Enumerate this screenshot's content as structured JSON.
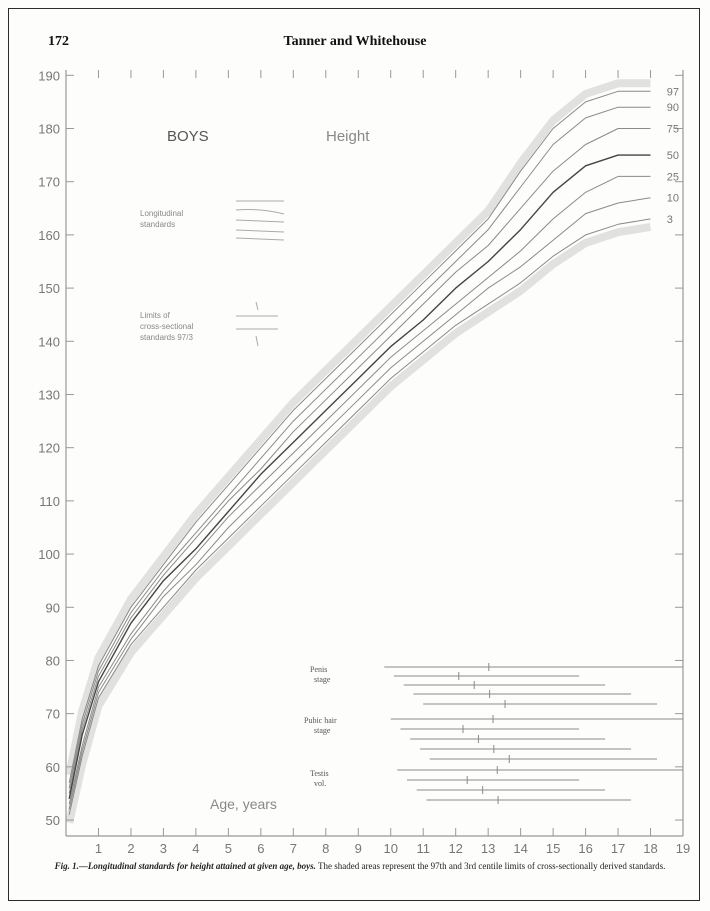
{
  "header": {
    "page_number": "172",
    "running_title": "Tanner and Whitehouse"
  },
  "figure": {
    "title": "BOYS",
    "subtitle": "Height",
    "age_axis_label": "Age, years",
    "legend_longitudinal": [
      "Longitudinal",
      "standards"
    ],
    "legend_cross": [
      "Limits of",
      "cross-sectional",
      "standards 97/3"
    ],
    "stage_groups": [
      {
        "label": [
          "Penis",
          "stage"
        ]
      },
      {
        "label": [
          "Pubic hair",
          "stage"
        ]
      },
      {
        "label": [
          "Testis",
          "vol."
        ]
      }
    ],
    "caption_lead": "Fig. 1.—Longitudinal standards for height attained at given age, boys.",
    "caption_body": "The shaded areas represent the 97th and 3rd centile limits of cross-sectionally derived standards."
  },
  "chart_data": {
    "type": "line",
    "x_ticks": [
      1,
      2,
      3,
      4,
      5,
      6,
      7,
      8,
      9,
      10,
      11,
      12,
      13,
      14,
      15,
      16,
      17,
      18,
      19
    ],
    "y_ticks": [
      50,
      60,
      70,
      80,
      90,
      100,
      110,
      120,
      130,
      140,
      150,
      160,
      170,
      180,
      190
    ],
    "xlim": [
      0,
      19
    ],
    "ylim": [
      47,
      191
    ],
    "x": [
      0.1,
      0.5,
      1,
      2,
      3,
      4,
      5,
      6,
      7,
      8,
      9,
      10,
      11,
      12,
      13,
      14,
      15,
      16,
      17,
      18
    ],
    "series": [
      {
        "name": "97",
        "values": [
          57,
          69,
          79,
          90,
          98,
          106,
          113,
          120,
          127,
          133,
          139,
          145,
          151,
          157,
          163,
          172,
          180,
          185,
          187,
          187
        ]
      },
      {
        "name": "90",
        "values": [
          56,
          68,
          78,
          89,
          97,
          104,
          111,
          118,
          125,
          131,
          137,
          143,
          149,
          155,
          161,
          169,
          177,
          182,
          184,
          184
        ]
      },
      {
        "name": "75",
        "values": [
          55,
          67,
          77,
          88,
          96,
          103,
          110,
          116,
          123,
          129,
          135,
          141,
          147,
          153,
          158,
          165,
          172,
          177,
          180,
          180
        ]
      },
      {
        "name": "50",
        "values": [
          54,
          66,
          76,
          87,
          95,
          101,
          108,
          115,
          121,
          127,
          133,
          139,
          144,
          150,
          155,
          161,
          168,
          173,
          175,
          175
        ]
      },
      {
        "name": "25",
        "values": [
          53,
          64,
          75,
          85,
          93,
          100,
          107,
          113,
          119,
          125,
          131,
          137,
          142,
          147,
          152,
          157,
          163,
          168,
          171,
          171
        ]
      },
      {
        "name": "10",
        "values": [
          52,
          63,
          74,
          84,
          92,
          98,
          105,
          111,
          117,
          123,
          129,
          135,
          140,
          145,
          150,
          154,
          159,
          164,
          166,
          167
        ]
      },
      {
        "name": "3",
        "values": [
          51,
          62,
          73,
          83,
          90,
          97,
          103,
          109,
          115,
          121,
          127,
          133,
          138,
          143,
          147,
          151,
          156,
          160,
          162,
          163
        ]
      }
    ]
  }
}
